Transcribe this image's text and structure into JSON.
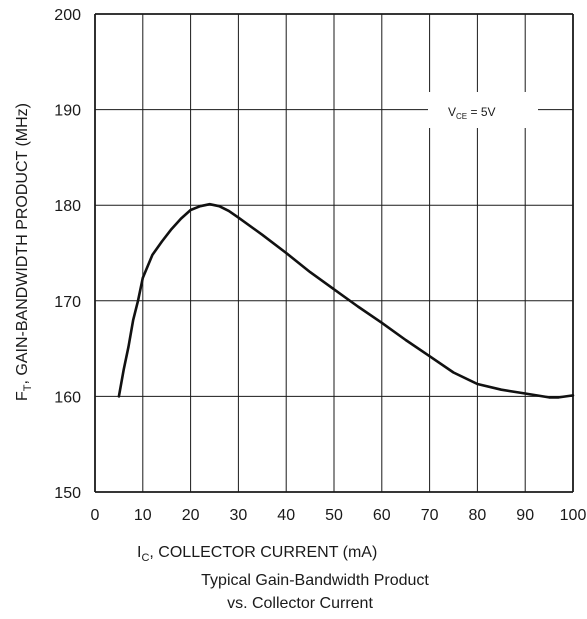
{
  "chart_data": {
    "type": "line",
    "xlim": [
      0,
      100
    ],
    "ylim": [
      150,
      200
    ],
    "x_ticks": [
      0,
      10,
      20,
      30,
      40,
      50,
      60,
      70,
      80,
      90,
      100
    ],
    "y_ticks": [
      150,
      160,
      170,
      180,
      190,
      200
    ],
    "grid": true,
    "xlabel": {
      "main": "I",
      "sub": "C",
      "rest": ", COLLECTOR CURRENT (mA)"
    },
    "ylabel": {
      "main": "F",
      "sub": "T",
      "rest": ", GAIN-BANDWIDTH PRODUCT (MHz)"
    },
    "annotation": {
      "main": "V",
      "sub": "CE",
      "rest": " = 5V"
    },
    "caption": [
      "Typical Gain-Bandwidth Product",
      "vs. Collector Current"
    ],
    "series": [
      {
        "x": [
          5,
          6,
          7,
          8,
          9,
          10,
          12,
          14,
          16,
          18,
          20,
          22,
          24,
          26,
          28,
          30,
          35,
          40,
          45,
          50,
          55,
          60,
          65,
          70,
          75,
          80,
          85,
          90,
          95,
          97,
          100
        ],
        "y": [
          160,
          162.8,
          165.2,
          168,
          170,
          172.4,
          174.8,
          176.2,
          177.5,
          178.6,
          179.5,
          179.9,
          180.1,
          179.9,
          179.4,
          178.7,
          176.9,
          175,
          173,
          171.2,
          169.4,
          167.7,
          165.9,
          164.2,
          162.5,
          161.3,
          160.7,
          160.3,
          159.9,
          159.9,
          160.1
        ]
      }
    ]
  }
}
